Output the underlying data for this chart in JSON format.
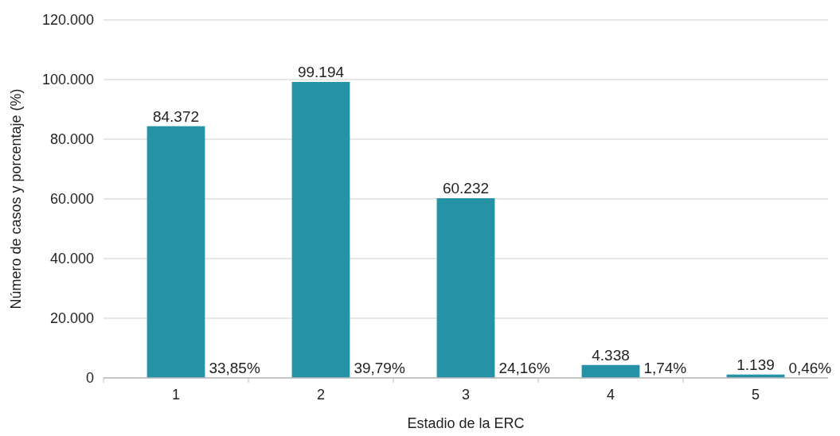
{
  "chart_data": {
    "type": "bar",
    "xlabel": "Estadio de la ERC",
    "ylabel": "Número de casos y porcentaje (%)",
    "categories": [
      "1",
      "2",
      "3",
      "4",
      "5"
    ],
    "values": [
      84372,
      99194,
      60232,
      4338,
      1139
    ],
    "value_labels": [
      "84.372",
      "99.194",
      "60.232",
      "4.338",
      "1.139"
    ],
    "color": "#2592a5",
    "ylim": [
      0,
      120000
    ],
    "yticks": [
      {
        "value": 0,
        "label": "0"
      },
      {
        "value": 20000,
        "label": "20.000"
      },
      {
        "value": 40000,
        "label": "40.000"
      },
      {
        "value": 60000,
        "label": "60.000"
      },
      {
        "value": 80000,
        "label": "80.000"
      },
      {
        "value": 100000,
        "label": "100.000"
      },
      {
        "value": 120000,
        "label": "120.000"
      }
    ],
    "grid": "y",
    "annotations": [
      {
        "text": "33,85%",
        "x": "1",
        "y": 0
      },
      {
        "text": "39,79%",
        "x": "2",
        "y": 0
      },
      {
        "text": "24,16%",
        "x": "3",
        "y": 0
      },
      {
        "text": "1,74%",
        "x": "4",
        "y": 0
      },
      {
        "text": "0,46%",
        "x": "5",
        "y": 0
      }
    ]
  }
}
